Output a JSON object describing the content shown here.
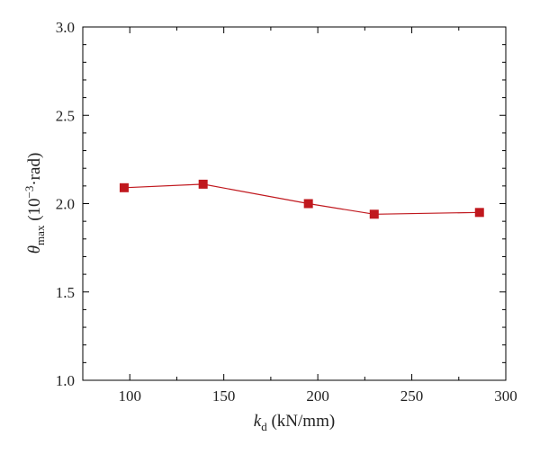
{
  "chart_data": {
    "type": "line",
    "title": "",
    "xlabel": {
      "symbol": "k",
      "subscript": "d",
      "unit": " (kN/mm)"
    },
    "ylabel": {
      "symbol": "θ",
      "subscript": "max",
      "unit_prefix": " (10",
      "unit_exponent": "−3",
      "unit_suffix": "·rad)"
    },
    "xlim": [
      75,
      300
    ],
    "ylim": [
      1.0,
      3.0
    ],
    "xticks": [
      "100",
      "150",
      "200",
      "250",
      "300"
    ],
    "yticks": [
      "1.0",
      "1.5",
      "2.0",
      "2.5",
      "3.0"
    ],
    "grid": false,
    "legend": "none",
    "color": "#c0181e",
    "marker": "square",
    "series": [
      {
        "x": [
          97,
          139,
          195,
          230,
          286
        ],
        "y": [
          2.09,
          2.11,
          2.0,
          1.94,
          1.95
        ]
      }
    ]
  }
}
